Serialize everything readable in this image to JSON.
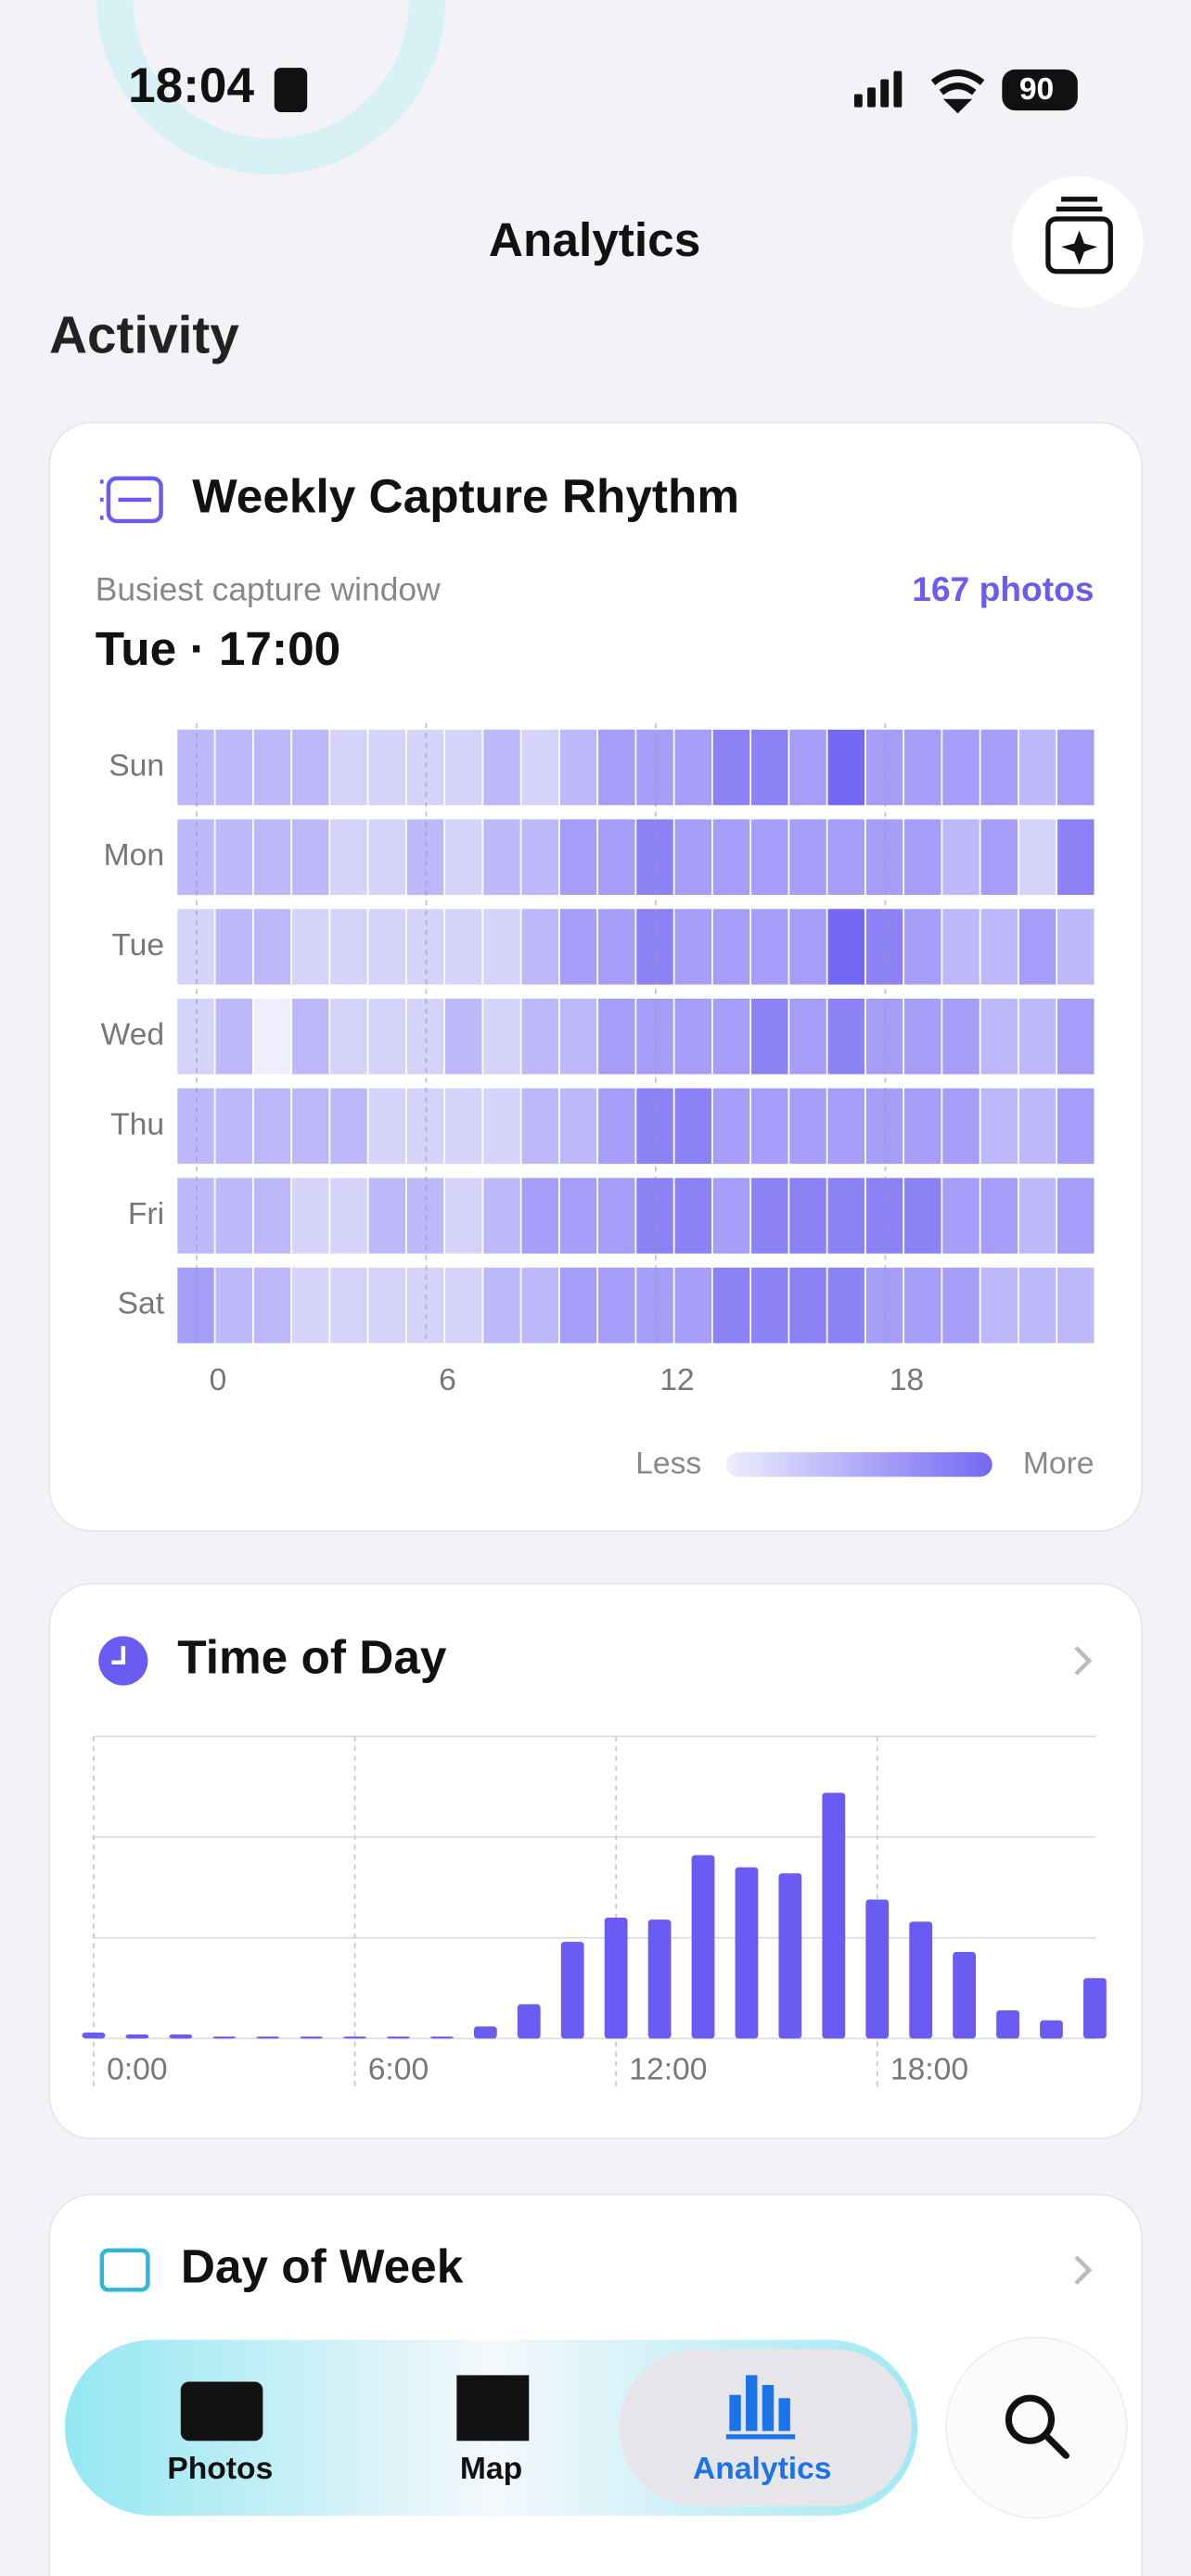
{
  "status_bar": {
    "time": "18:04",
    "battery": "90"
  },
  "header": {
    "title": "Analytics"
  },
  "section": {
    "title": "Activity"
  },
  "rhythm_card": {
    "title": "Weekly Capture Rhythm",
    "subtitle": "Busiest capture window",
    "count": "167 photos",
    "highlight": "Tue · 17:00",
    "legend_less": "Less",
    "legend_more": "More"
  },
  "time_card": {
    "title": "Time of Day"
  },
  "week_card": {
    "title": "Day of Week"
  },
  "tab_bar": {
    "tabs": [
      "Photos",
      "Map",
      "Analytics"
    ]
  },
  "chart_data": [
    {
      "type": "heatmap",
      "rows": [
        "Sun",
        "Mon",
        "Tue",
        "Wed",
        "Thu",
        "Fri",
        "Sat"
      ],
      "x": [
        0,
        1,
        2,
        3,
        4,
        5,
        6,
        7,
        8,
        9,
        10,
        11,
        12,
        13,
        14,
        15,
        16,
        17,
        18,
        19,
        20,
        21,
        22,
        23
      ],
      "xlim": [
        -0.5,
        23.5
      ],
      "xticks": [
        0,
        6,
        12,
        18,
        24
      ],
      "clim": [
        0,
        5
      ],
      "colors": [
        "#eeeefd",
        "#7467f3"
      ],
      "values": [
        [
          2,
          2,
          2,
          2,
          1,
          1,
          1,
          1,
          2,
          1,
          2,
          3,
          3,
          3,
          4,
          4,
          3,
          5,
          3,
          3,
          3,
          3,
          2,
          3
        ],
        [
          2,
          2,
          2,
          2,
          1,
          1,
          2,
          1,
          2,
          2,
          3,
          3,
          4,
          3,
          3,
          3,
          3,
          3,
          3,
          3,
          2,
          3,
          1,
          4
        ],
        [
          1,
          2,
          2,
          1,
          1,
          1,
          1,
          1,
          1,
          2,
          3,
          3,
          4,
          3,
          3,
          3,
          3,
          5,
          4,
          3,
          2,
          2,
          3,
          2
        ],
        [
          1,
          2,
          0,
          2,
          1,
          1,
          1,
          2,
          1,
          2,
          2,
          3,
          3,
          3,
          3,
          4,
          3,
          4,
          3,
          3,
          3,
          2,
          2,
          3
        ],
        [
          2,
          2,
          2,
          2,
          2,
          1,
          1,
          1,
          1,
          2,
          2,
          3,
          4,
          4,
          3,
          3,
          3,
          3,
          3,
          3,
          3,
          2,
          2,
          3
        ],
        [
          2,
          2,
          2,
          1,
          1,
          2,
          2,
          1,
          2,
          3,
          3,
          3,
          4,
          4,
          3,
          4,
          4,
          4,
          4,
          4,
          3,
          3,
          2,
          3
        ],
        [
          3,
          2,
          2,
          1,
          1,
          1,
          1,
          1,
          2,
          2,
          3,
          3,
          3,
          3,
          4,
          4,
          4,
          4,
          3,
          3,
          3,
          2,
          2,
          2
        ]
      ]
    },
    {
      "type": "bar",
      "categories": [
        "0:00",
        null,
        null,
        null,
        null,
        null,
        "6:00",
        null,
        null,
        null,
        null,
        null,
        "12:00",
        null,
        null,
        null,
        null,
        null,
        "18:00",
        null,
        null,
        null,
        null,
        null
      ],
      "values": [
        0.3,
        0.2,
        0.2,
        0.1,
        0.1,
        0.1,
        0.1,
        0.1,
        0.1,
        0.6,
        1.7,
        4.8,
        6,
        5.9,
        9.1,
        8.5,
        8.2,
        12.2,
        6.9,
        5.8,
        4.3,
        1.4,
        0.9,
        3
      ],
      "color": "#6a5cf2",
      "ylim": [
        0,
        15
      ],
      "yticks": [
        0,
        5,
        10,
        15
      ],
      "grid": true
    }
  ]
}
